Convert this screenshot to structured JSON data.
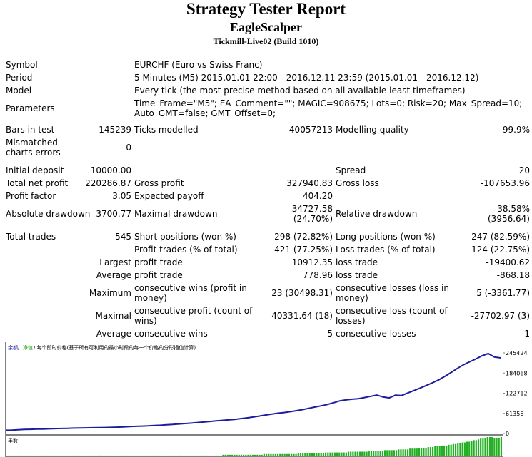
{
  "header": {
    "title": "Strategy Tester Report",
    "ea_name": "EagleScalper",
    "server": "Tickmill-Live02 (Build 1010)"
  },
  "settings": {
    "symbol_label": "Symbol",
    "symbol_value": "EURCHF (Euro vs Swiss Franc)",
    "period_label": "Period",
    "period_value": "5 Minutes (M5) 2015.01.01 22:00 - 2016.12.11 23:59 (2015.01.01 - 2016.12.12)",
    "model_label": "Model",
    "model_value": "Every tick (the most precise method based on all available least timeframes)",
    "parameters_label": "Parameters",
    "parameters_value": "Time_Frame=\"M5\"; EA_Comment=\"\"; MAGIC=908675; Lots=0; Risk=20; Max_Spread=10; Auto_GMT=false; GMT_Offset=0;"
  },
  "stats": {
    "bars_label": "Bars in test",
    "bars_value": "145239",
    "ticks_label": "Ticks modelled",
    "ticks_value": "40057213",
    "quality_label": "Modelling quality",
    "quality_value": "99.9%",
    "mismatch_label": "Mismatched charts errors",
    "mismatch_value": "0",
    "initial_deposit_label": "Initial deposit",
    "initial_deposit_value": "10000.00",
    "spread_label": "Spread",
    "spread_value": "20",
    "net_profit_label": "Total net profit",
    "net_profit_value": "220286.87",
    "gross_profit_label": "Gross profit",
    "gross_profit_value": "327940.83",
    "gross_loss_label": "Gross loss",
    "gross_loss_value": "-107653.96",
    "profit_factor_label": "Profit factor",
    "profit_factor_value": "3.05",
    "expected_payoff_label": "Expected payoff",
    "expected_payoff_value": "404.20",
    "abs_dd_label": "Absolute drawdown",
    "abs_dd_value": "3700.77",
    "max_dd_label": "Maximal drawdown",
    "max_dd_value": "34727.58",
    "max_dd_pct": "(24.70%)",
    "rel_dd_label": "Relative drawdown",
    "rel_dd_value": "38.58%",
    "rel_dd_abs": "(3956.64)",
    "total_trades_label": "Total trades",
    "total_trades_value": "545",
    "short_label": "Short positions (won %)",
    "short_value": "298 (72.82%)",
    "long_label": "Long positions (won %)",
    "long_value": "247 (82.59%)",
    "profit_trades_label": "Profit trades (% of total)",
    "profit_trades_value": "421 (77.25%)",
    "loss_trades_label": "Loss trades (% of total)",
    "loss_trades_value": "124 (22.75%)",
    "largest_label": "Largest",
    "largest_profit_label": "profit trade",
    "largest_profit_value": "10912.35",
    "largest_loss_label": "loss trade",
    "largest_loss_value": "-19400.62",
    "average_label": "Average",
    "average_profit_label": "profit trade",
    "average_profit_value": "778.96",
    "average_loss_label": "loss trade",
    "average_loss_value": "-868.18",
    "maximum_label": "Maximum",
    "max_cons_wins_label": "consecutive wins (profit in money)",
    "max_cons_wins_value": "23 (30498.31)",
    "max_cons_losses_label": "consecutive losses (loss in money)",
    "max_cons_losses_value": "5 (-3361.77)",
    "maximal_label": "Maximal",
    "max_cons_profit_label": "consecutive profit (count of wins)",
    "max_cons_profit_value": "40331.64 (18)",
    "max_cons_loss_label": "consecutive loss (count of losses)",
    "max_cons_loss_value": "-27702.97 (3)",
    "average2_label": "Average",
    "avg_cons_wins_label": "consecutive wins",
    "avg_cons_wins_value": "5",
    "avg_cons_losses_label": "consecutive losses",
    "avg_cons_losses_value": "1"
  },
  "chart_data": {
    "type": "line",
    "legend": {
      "balance": "余额",
      "separator": "/",
      "equity": "净值",
      "rest": "/ 每个即时价格(基于所有可利用的最小时段的每一个价格的分形插值计算)"
    },
    "lot_label": "手数",
    "colors": {
      "balance": "#1c1c9e",
      "equity": "#1ea01e",
      "lots": "#22b022"
    },
    "ylim": [
      0,
      245424
    ],
    "yticks": [
      "245424",
      "184068",
      "122712",
      "61356",
      "0"
    ],
    "series": [
      {
        "values": [
          10000,
          10400,
          11600,
          12300,
          12900,
          13500,
          13700,
          14300,
          14900,
          15500,
          15800,
          16400,
          16700,
          17100,
          17500,
          17800,
          18300,
          18700,
          19300,
          20000,
          21100,
          21900,
          22600,
          23300,
          24300,
          25300,
          26400,
          27600,
          29000,
          30400,
          31800,
          33400,
          35000,
          36800,
          38400,
          40000,
          41400,
          43100,
          45300,
          47600,
          50200,
          53300,
          56200,
          59100,
          61800,
          63900,
          66400,
          69400,
          72700,
          76700,
          80500,
          84200,
          88500,
          93600,
          99500,
          102200,
          104500,
          106000,
          109500,
          113400,
          117000,
          111200,
          108400,
          116600,
          115700,
          123400,
          130800,
          138300,
          146200,
          154400,
          163300,
          173900,
          185800,
          198000,
          209100,
          218300,
          227000,
          236600,
          243400,
          232900,
          230286
        ]
      }
    ],
    "lots": [
      0.1,
      0.1,
      0.1,
      0.1,
      0.1,
      0.1,
      0.1,
      0.1,
      0.1,
      0.1,
      0.1,
      0.1,
      0.1,
      0.1,
      0.1,
      0.1,
      0.1,
      0.1,
      0.1,
      0.1,
      0.1,
      0.1,
      0.1,
      0.1,
      0.1,
      0.1,
      0.1,
      0.1,
      0.1,
      0.1,
      0.1,
      0.1,
      0.1,
      0.1,
      0.1,
      0.1,
      0.1,
      0.1,
      0.1,
      0.1,
      0.1,
      0.1,
      0.1,
      0.1,
      0.1,
      0.1,
      0.1,
      0.1,
      0.1,
      0.1,
      0.1,
      0.1,
      0.1,
      0.1,
      0.1,
      0.1,
      0.1,
      0.1,
      0.1,
      0.1,
      0.1,
      0.1,
      0.1,
      0.1,
      0.1,
      0.1,
      0.1,
      0.1,
      0.1,
      0.1,
      0.1,
      0.1,
      0.1,
      0.1,
      0.1,
      0.1,
      0.1,
      0.1,
      0.1,
      0.1,
      0.1,
      0.1,
      0.1,
      0.1,
      0.1,
      0.1,
      0.1,
      0.1,
      0.1,
      0.1,
      0.1,
      0.1,
      0.1,
      0.1,
      0.1,
      0.2,
      0.2,
      0.2,
      0.2,
      0.2,
      0.2,
      0.2,
      0.2,
      0.2,
      0.2,
      0.2,
      0.2,
      0.2,
      0.2,
      0.2,
      0.2,
      0.2,
      0.2,
      0.3,
      0.3,
      0.3,
      0.3,
      0.3,
      0.3,
      0.3,
      0.3,
      0.3,
      0.3,
      0.3,
      0.3,
      0.3,
      0.3,
      0.3,
      0.4,
      0.4,
      0.4,
      0.4,
      0.4,
      0.4,
      0.4,
      0.4,
      0.4,
      0.4,
      0.4,
      0.4,
      0.5,
      0.5,
      0.5,
      0.5,
      0.5,
      0.5,
      0.5,
      0.5,
      0.5,
      0.5,
      0.6,
      0.6,
      0.6,
      0.6,
      0.6,
      0.6,
      0.6,
      0.6,
      0.6,
      0.7,
      0.7,
      0.7,
      0.7,
      0.7,
      0.7,
      0.7,
      0.8,
      0.8,
      0.8,
      0.8,
      0.8,
      0.8,
      0.9,
      0.9,
      0.9,
      0.9,
      0.9,
      1.0,
      1.0,
      1.0,
      1.0,
      1.1,
      1.1,
      1.1,
      1.1,
      1.2,
      1.2,
      1.2,
      1.3,
      1.3,
      1.3,
      1.4,
      1.4,
      1.4,
      1.5,
      1.5,
      1.6,
      1.6,
      1.7,
      1.7,
      1.8,
      1.8,
      1.9,
      1.9,
      2.0,
      2.1,
      2.1,
      2.2,
      2.3,
      2.3,
      2.4,
      2.5,
      2.5,
      2.5,
      2.4,
      2.4,
      2.4,
      2.5
    ],
    "lots_max": 2.5
  }
}
